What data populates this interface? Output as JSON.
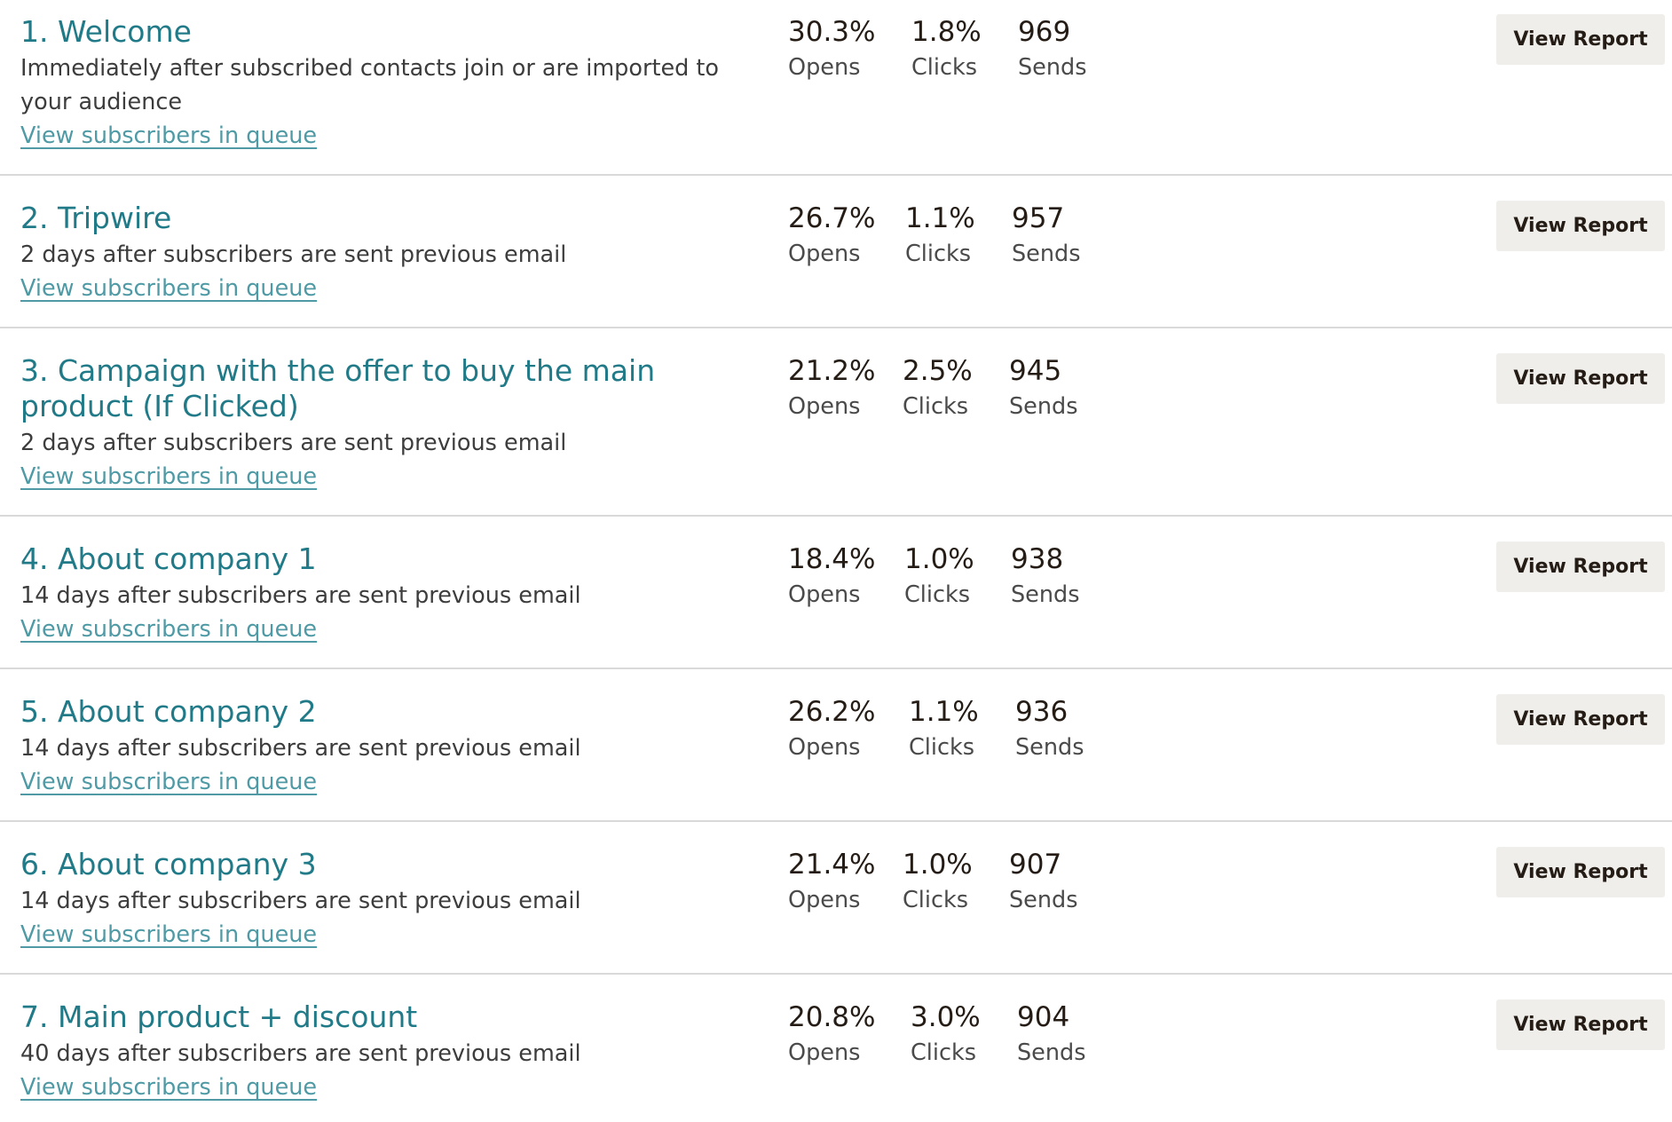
{
  "emails": [
    {
      "title": "1. Welcome",
      "description": "Immediately after subscribed contacts join or are imported to your audience",
      "queue_link": "View subscribers in queue",
      "opens_value": "30.3%",
      "opens_label": "Opens",
      "clicks_value": "1.8%",
      "clicks_label": "Clicks",
      "sends_value": "969",
      "sends_label": "Sends",
      "button_label": "View Report"
    },
    {
      "title": "2. Tripwire",
      "description": "2 days after subscribers are sent previous email",
      "queue_link": "View subscribers in queue",
      "opens_value": "26.7%",
      "opens_label": "Opens",
      "clicks_value": "1.1%",
      "clicks_label": "Clicks",
      "sends_value": "957",
      "sends_label": "Sends",
      "button_label": "View Report"
    },
    {
      "title": "3. Campaign with the offer to buy the main product (If Clicked)",
      "description": "2 days after subscribers are sent previous email",
      "queue_link": "View subscribers in queue",
      "opens_value": "21.2%",
      "opens_label": "Opens",
      "clicks_value": "2.5%",
      "clicks_label": "Clicks",
      "sends_value": "945",
      "sends_label": "Sends",
      "button_label": "View Report"
    },
    {
      "title": "4. About company 1",
      "description": "14 days after subscribers are sent previous email",
      "queue_link": "View subscribers in queue",
      "opens_value": "18.4%",
      "opens_label": "Opens",
      "clicks_value": "1.0%",
      "clicks_label": "Clicks",
      "sends_value": "938",
      "sends_label": "Sends",
      "button_label": "View Report"
    },
    {
      "title": "5. About company 2",
      "description": "14 days after subscribers are sent previous email",
      "queue_link": "View subscribers in queue",
      "opens_value": "26.2%",
      "opens_label": "Opens",
      "clicks_value": "1.1%",
      "clicks_label": "Clicks",
      "sends_value": "936",
      "sends_label": "Sends",
      "button_label": "View Report"
    },
    {
      "title": "6. About company 3",
      "description": "14 days after subscribers are sent previous email",
      "queue_link": "View subscribers in queue",
      "opens_value": "21.4%",
      "opens_label": "Opens",
      "clicks_value": "1.0%",
      "clicks_label": "Clicks",
      "sends_value": "907",
      "sends_label": "Sends",
      "button_label": "View Report"
    },
    {
      "title": "7. Main product + discount",
      "description": "40 days after subscribers are sent previous email",
      "queue_link": "View subscribers in queue",
      "opens_value": "20.8%",
      "opens_label": "Opens",
      "clicks_value": "3.0%",
      "clicks_label": "Clicks",
      "sends_value": "904",
      "sends_label": "Sends",
      "button_label": "View Report"
    }
  ],
  "colors": {
    "title": "#217a87",
    "link": "#4f9aa5",
    "button_bg": "#efeeea",
    "divider": "#d9d9d9"
  }
}
